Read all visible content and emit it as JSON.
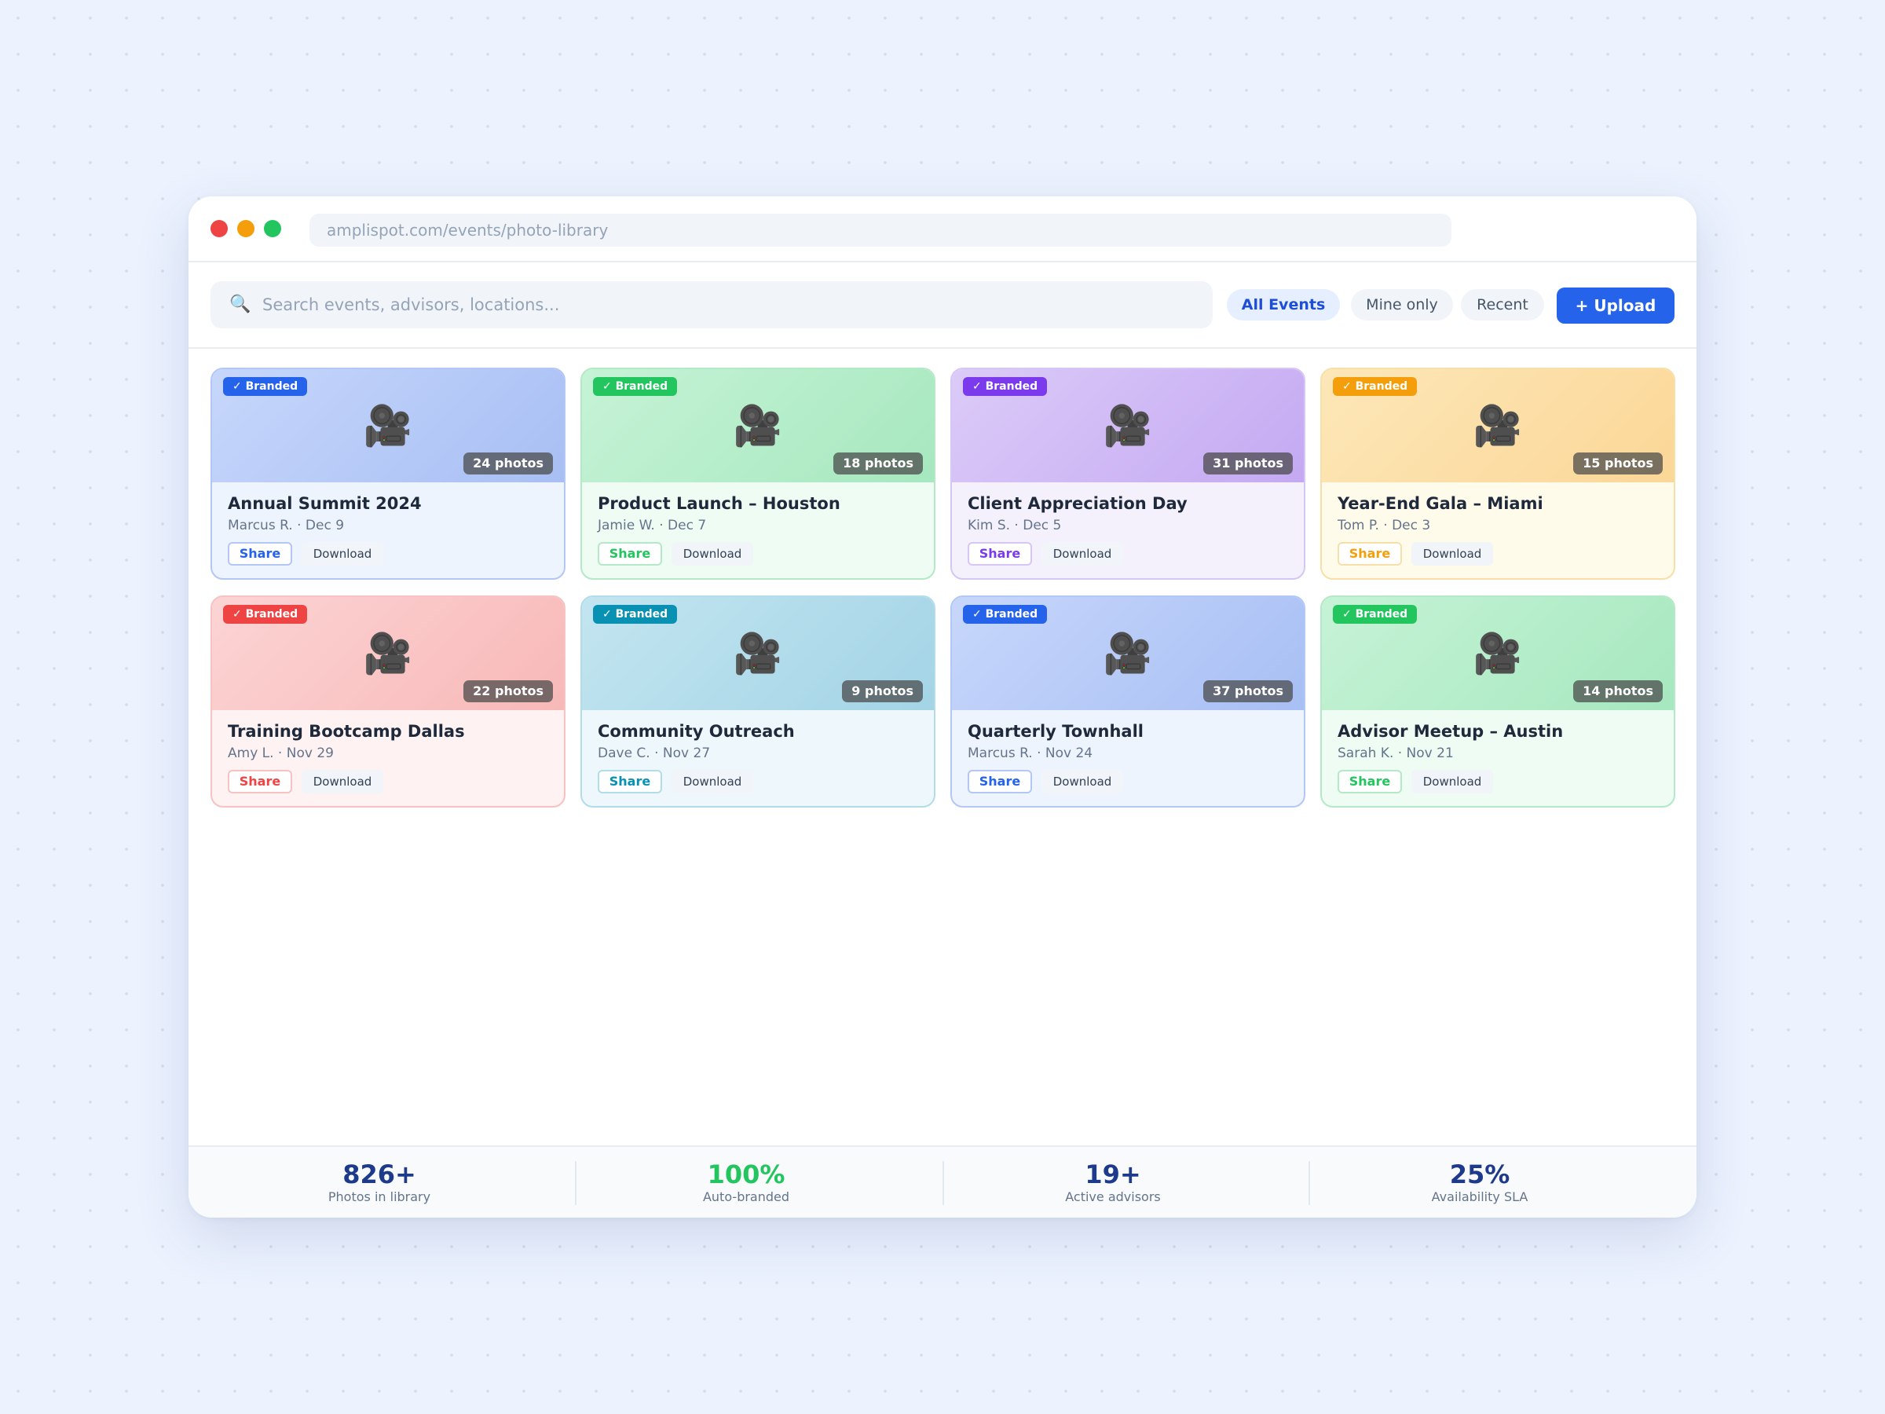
{
  "browser": {
    "url": "amplispot.com/events/photo-library"
  },
  "toolbar": {
    "search_icon": "search-icon",
    "search_placeholder": "Search events, advisors, locations...",
    "filters": [
      {
        "label": "All Events",
        "active": true
      },
      {
        "label": "Mine only",
        "active": false
      },
      {
        "label": "Recent",
        "active": false
      }
    ],
    "upload_label": "+ Upload"
  },
  "cards": [
    {
      "badge": "✓ Branded",
      "photos": "24 photos",
      "title": "Annual Summit 2024",
      "meta": "Marcus R. · Dec 9",
      "share_label": "Share",
      "download_label": "Download",
      "icon": "movie-camera-icon",
      "accent": "#2563eb",
      "border": "#b2c7f6",
      "body_bg": "#eef4fe",
      "thumb_from": "#c7d7fb",
      "thumb_to": "#a8bff4"
    },
    {
      "badge": "✓ Branded",
      "photos": "18 photos",
      "title": "Product Launch – Houston",
      "meta": "Jamie W. · Dec 7",
      "share_label": "Share",
      "download_label": "Download",
      "icon": "movie-camera-icon",
      "accent": "#22c55e",
      "border": "#b3e9c6",
      "body_bg": "#eefcf3",
      "thumb_from": "#c6f3d6",
      "thumb_to": "#a6e8bf"
    },
    {
      "badge": "✓ Branded",
      "photos": "31 photos",
      "title": "Client Appreciation Day",
      "meta": "Kim S. · Dec 5",
      "share_label": "Share",
      "download_label": "Download",
      "icon": "movie-camera-icon",
      "accent": "#7c3aed",
      "border": "#d6c6f6",
      "body_bg": "#f4f1fd",
      "thumb_from": "#dccbf8",
      "thumb_to": "#c4a9f2"
    },
    {
      "badge": "✓ Branded",
      "photos": "15 photos",
      "title": "Year-End Gala – Miami",
      "meta": "Tom P. · Dec 3",
      "share_label": "Share",
      "download_label": "Download",
      "icon": "movie-camera-icon",
      "accent": "#f59e0b",
      "border": "#f8dfa8",
      "body_bg": "#fffbea",
      "thumb_from": "#fde7b8",
      "thumb_to": "#fbd797"
    },
    {
      "badge": "✓ Branded",
      "photos": "22 photos",
      "title": "Training Bootcamp Dallas",
      "meta": "Amy L. · Nov 29",
      "share_label": "Share",
      "download_label": "Download",
      "icon": "movie-camera-icon",
      "accent": "#ef4444",
      "border": "#f6c2c2",
      "body_bg": "#fef2f2",
      "thumb_from": "#fcd4d4",
      "thumb_to": "#f8b8b8"
    },
    {
      "badge": "✓ Branded",
      "photos": "9 photos",
      "title": "Community Outreach",
      "meta": "Dave C. · Nov 27",
      "share_label": "Share",
      "download_label": "Download",
      "icon": "movie-camera-icon",
      "accent": "#0891b2",
      "border": "#b3dcea",
      "body_bg": "#eef7fc",
      "thumb_from": "#c3e5f0",
      "thumb_to": "#a3d4e6"
    },
    {
      "badge": "✓ Branded",
      "photos": "37 photos",
      "title": "Quarterly Townhall",
      "meta": "Marcus R. · Nov 24",
      "share_label": "Share",
      "download_label": "Download",
      "icon": "movie-camera-icon",
      "accent": "#2563eb",
      "border": "#b2c7f6",
      "body_bg": "#eef4fe",
      "thumb_from": "#c7d7fb",
      "thumb_to": "#a8bff4"
    },
    {
      "badge": "✓ Branded",
      "photos": "14 photos",
      "title": "Advisor Meetup – Austin",
      "meta": "Sarah K. · Nov 21",
      "share_label": "Share",
      "download_label": "Download",
      "icon": "movie-camera-icon",
      "accent": "#22c55e",
      "border": "#b3e9c6",
      "body_bg": "#eefcf3",
      "thumb_from": "#c6f3d6",
      "thumb_to": "#a6e8bf"
    }
  ],
  "stats": [
    {
      "value": "826+",
      "label": "Photos in library",
      "color": "#1e3a8a"
    },
    {
      "value": "100%",
      "label": "Auto-branded",
      "color": "#22c55e"
    },
    {
      "value": "19+",
      "label": "Active advisors",
      "color": "#1e3a8a"
    },
    {
      "value": "25%",
      "label": "Availability SLA",
      "color": "#1e3a8a"
    }
  ]
}
